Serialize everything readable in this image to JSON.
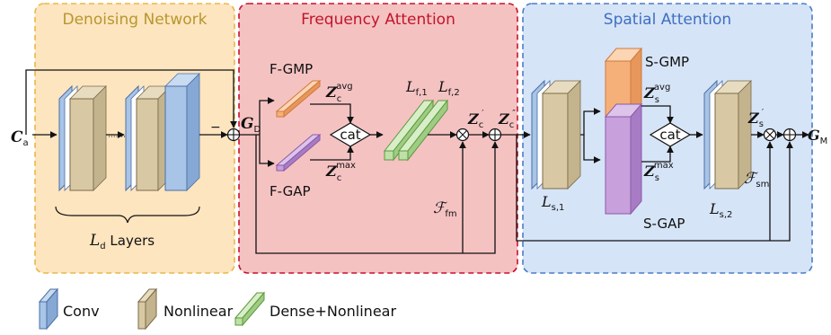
{
  "panels": {
    "denoising": {
      "title": "Denoising Network",
      "title_color": "#b8962e",
      "fill": "#fde5bf",
      "stroke": "#e8b84a"
    },
    "frequency": {
      "title": "Frequency Attention",
      "title_color": "#c0152b",
      "fill": "#f5c2c2",
      "stroke": "#c8102e"
    },
    "spatial": {
      "title": "Spatial Attention",
      "title_color": "#3f6fc0",
      "fill": "#d6e4f7",
      "stroke": "#4a7cc7"
    }
  },
  "denoising": {
    "input": {
      "main": "C",
      "sub": "a"
    },
    "layers": {
      "main": "L",
      "sub": "d",
      "suffix": " Layers"
    },
    "dots": "·······",
    "minus": "−"
  },
  "frequency": {
    "gd": {
      "main": "G",
      "sub": "D"
    },
    "gmp_label": "F-GMP",
    "gap_label": "F-GAP",
    "z_avg": {
      "main": "Z",
      "sub": "c",
      "sup": "avg"
    },
    "z_max": {
      "main": "Z",
      "sub": "c",
      "sup": "max"
    },
    "cat": "cat",
    "l_f1": {
      "main": "L",
      "sub": "f,1"
    },
    "l_f2": {
      "main": "L",
      "sub": "f,2"
    },
    "z_c_prime": {
      "main": "Z",
      "sub": "c",
      "sup": "′"
    },
    "z_c_dprime": {
      "main": "Z",
      "sub": "c",
      "sup": "″"
    },
    "f_fm": {
      "main": "ℱ",
      "sub": "fm"
    }
  },
  "spatial": {
    "gmp_label": "S-GMP",
    "gap_label": "S-GAP",
    "z_avg": {
      "main": "Z",
      "sub": "s",
      "sup": "avg"
    },
    "z_max": {
      "main": "Z",
      "sub": "s",
      "sup": "max"
    },
    "cat": "cat",
    "l_s1": {
      "main": "L",
      "sub": "s,1"
    },
    "l_s2": {
      "main": "L",
      "sub": "s,2"
    },
    "z_s_prime": {
      "main": "Z",
      "sub": "s",
      "sup": "′"
    },
    "f_sm": {
      "main": "ℱ",
      "sub": "sm"
    },
    "output": {
      "main": "G",
      "sub": "M"
    }
  },
  "legend": {
    "conv": "Conv",
    "nonlinear": "Nonlinear",
    "dense": "Dense+Nonlinear"
  },
  "colors": {
    "conv": "#a8c4e6",
    "nonlinear": "#d8c9a4",
    "dense": "#bfe0a8",
    "gmp": "#f5b07a",
    "gap": "#c8a0dc"
  }
}
